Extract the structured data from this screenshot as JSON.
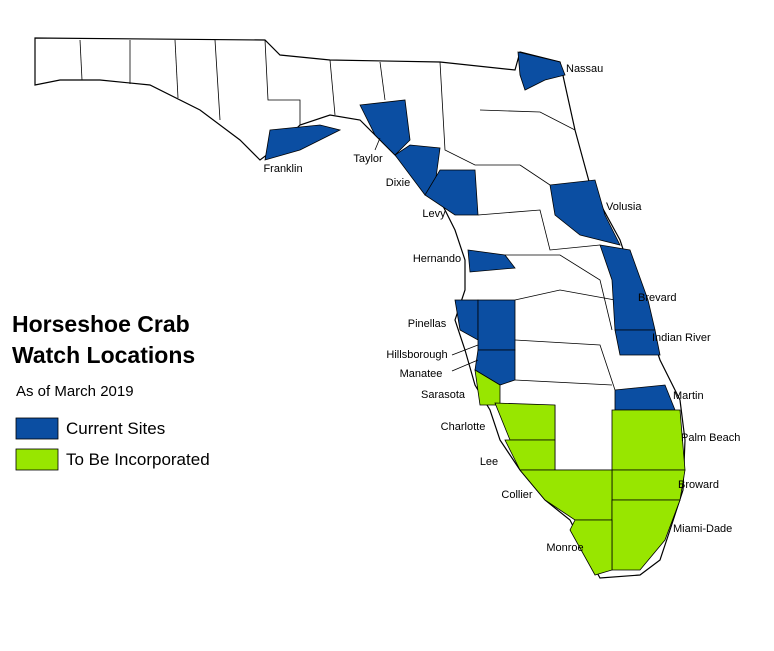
{
  "legend": {
    "title": [
      "Horseshoe Crab",
      "Watch Locations"
    ],
    "subtitle": "As of March 2019",
    "items": [
      {
        "label": "Current Sites",
        "color": "#0b4ea2"
      },
      {
        "label": "To Be Incorporated",
        "color": "#98e600"
      }
    ]
  },
  "counties": [
    {
      "name": "Nassau",
      "color": "#0b4ea2"
    },
    {
      "name": "Franklin",
      "color": "#0b4ea2"
    },
    {
      "name": "Taylor",
      "color": "#0b4ea2"
    },
    {
      "name": "Dixie",
      "color": "#0b4ea2"
    },
    {
      "name": "Levy",
      "color": "#0b4ea2"
    },
    {
      "name": "Volusia",
      "color": "#0b4ea2"
    },
    {
      "name": "Hernando",
      "color": "#0b4ea2"
    },
    {
      "name": "Brevard",
      "color": "#0b4ea2"
    },
    {
      "name": "Pinellas",
      "color": "#0b4ea2"
    },
    {
      "name": "Indian River",
      "color": "#0b4ea2"
    },
    {
      "name": "Hillsborough",
      "color": "#0b4ea2"
    },
    {
      "name": "Manatee",
      "color": "#0b4ea2"
    },
    {
      "name": "Martin",
      "color": "#0b4ea2"
    },
    {
      "name": "Sarasota",
      "color": "#98e600"
    },
    {
      "name": "Charlotte",
      "color": "#98e600"
    },
    {
      "name": "Palm Beach",
      "color": "#98e600"
    },
    {
      "name": "Lee",
      "color": "#98e600"
    },
    {
      "name": "Broward",
      "color": "#98e600"
    },
    {
      "name": "Collier",
      "color": "#98e600"
    },
    {
      "name": "Miami-Dade",
      "color": "#98e600"
    },
    {
      "name": "Monroe",
      "color": "#98e600"
    }
  ]
}
